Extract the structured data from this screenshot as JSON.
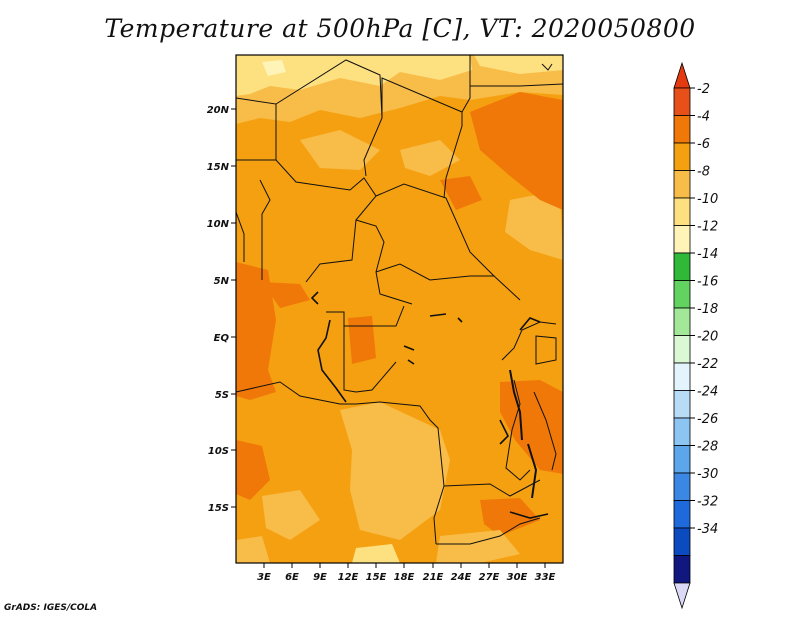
{
  "title": "Temperature at 500hPa [C], VT: 2020050800",
  "credit": "GrADS: IGES/COLA",
  "lat_ticks": [
    "20N",
    "15N",
    "10N",
    "5N",
    "EQ",
    "5S",
    "10S",
    "15S"
  ],
  "lon_ticks": [
    "3E",
    "6E",
    "9E",
    "12E",
    "15E",
    "18E",
    "21E",
    "24E",
    "27E",
    "30E",
    "33E"
  ],
  "colorbar": {
    "labels": [
      "-2",
      "-4",
      "-6",
      "-8",
      "-10",
      "-12",
      "-14",
      "-16",
      "-18",
      "-20",
      "-22",
      "-24",
      "-26",
      "-28",
      "-30",
      "-32",
      "-34"
    ],
    "colors": [
      "#e8501a",
      "#f07808",
      "#f5a010",
      "#f8bc48",
      "#fde080",
      "#fef4b8",
      "#30b838",
      "#62d260",
      "#a2e898",
      "#daf8d4",
      "#e4f4fc",
      "#b8dcf6",
      "#8cc4f2",
      "#5ca6ec",
      "#3a88e4",
      "#1e6adc",
      "#0c4ac0",
      "#101880"
    ],
    "top_arrow_color": "#e33a10",
    "bottom_arrow_color": "#dcd8f8"
  }
}
